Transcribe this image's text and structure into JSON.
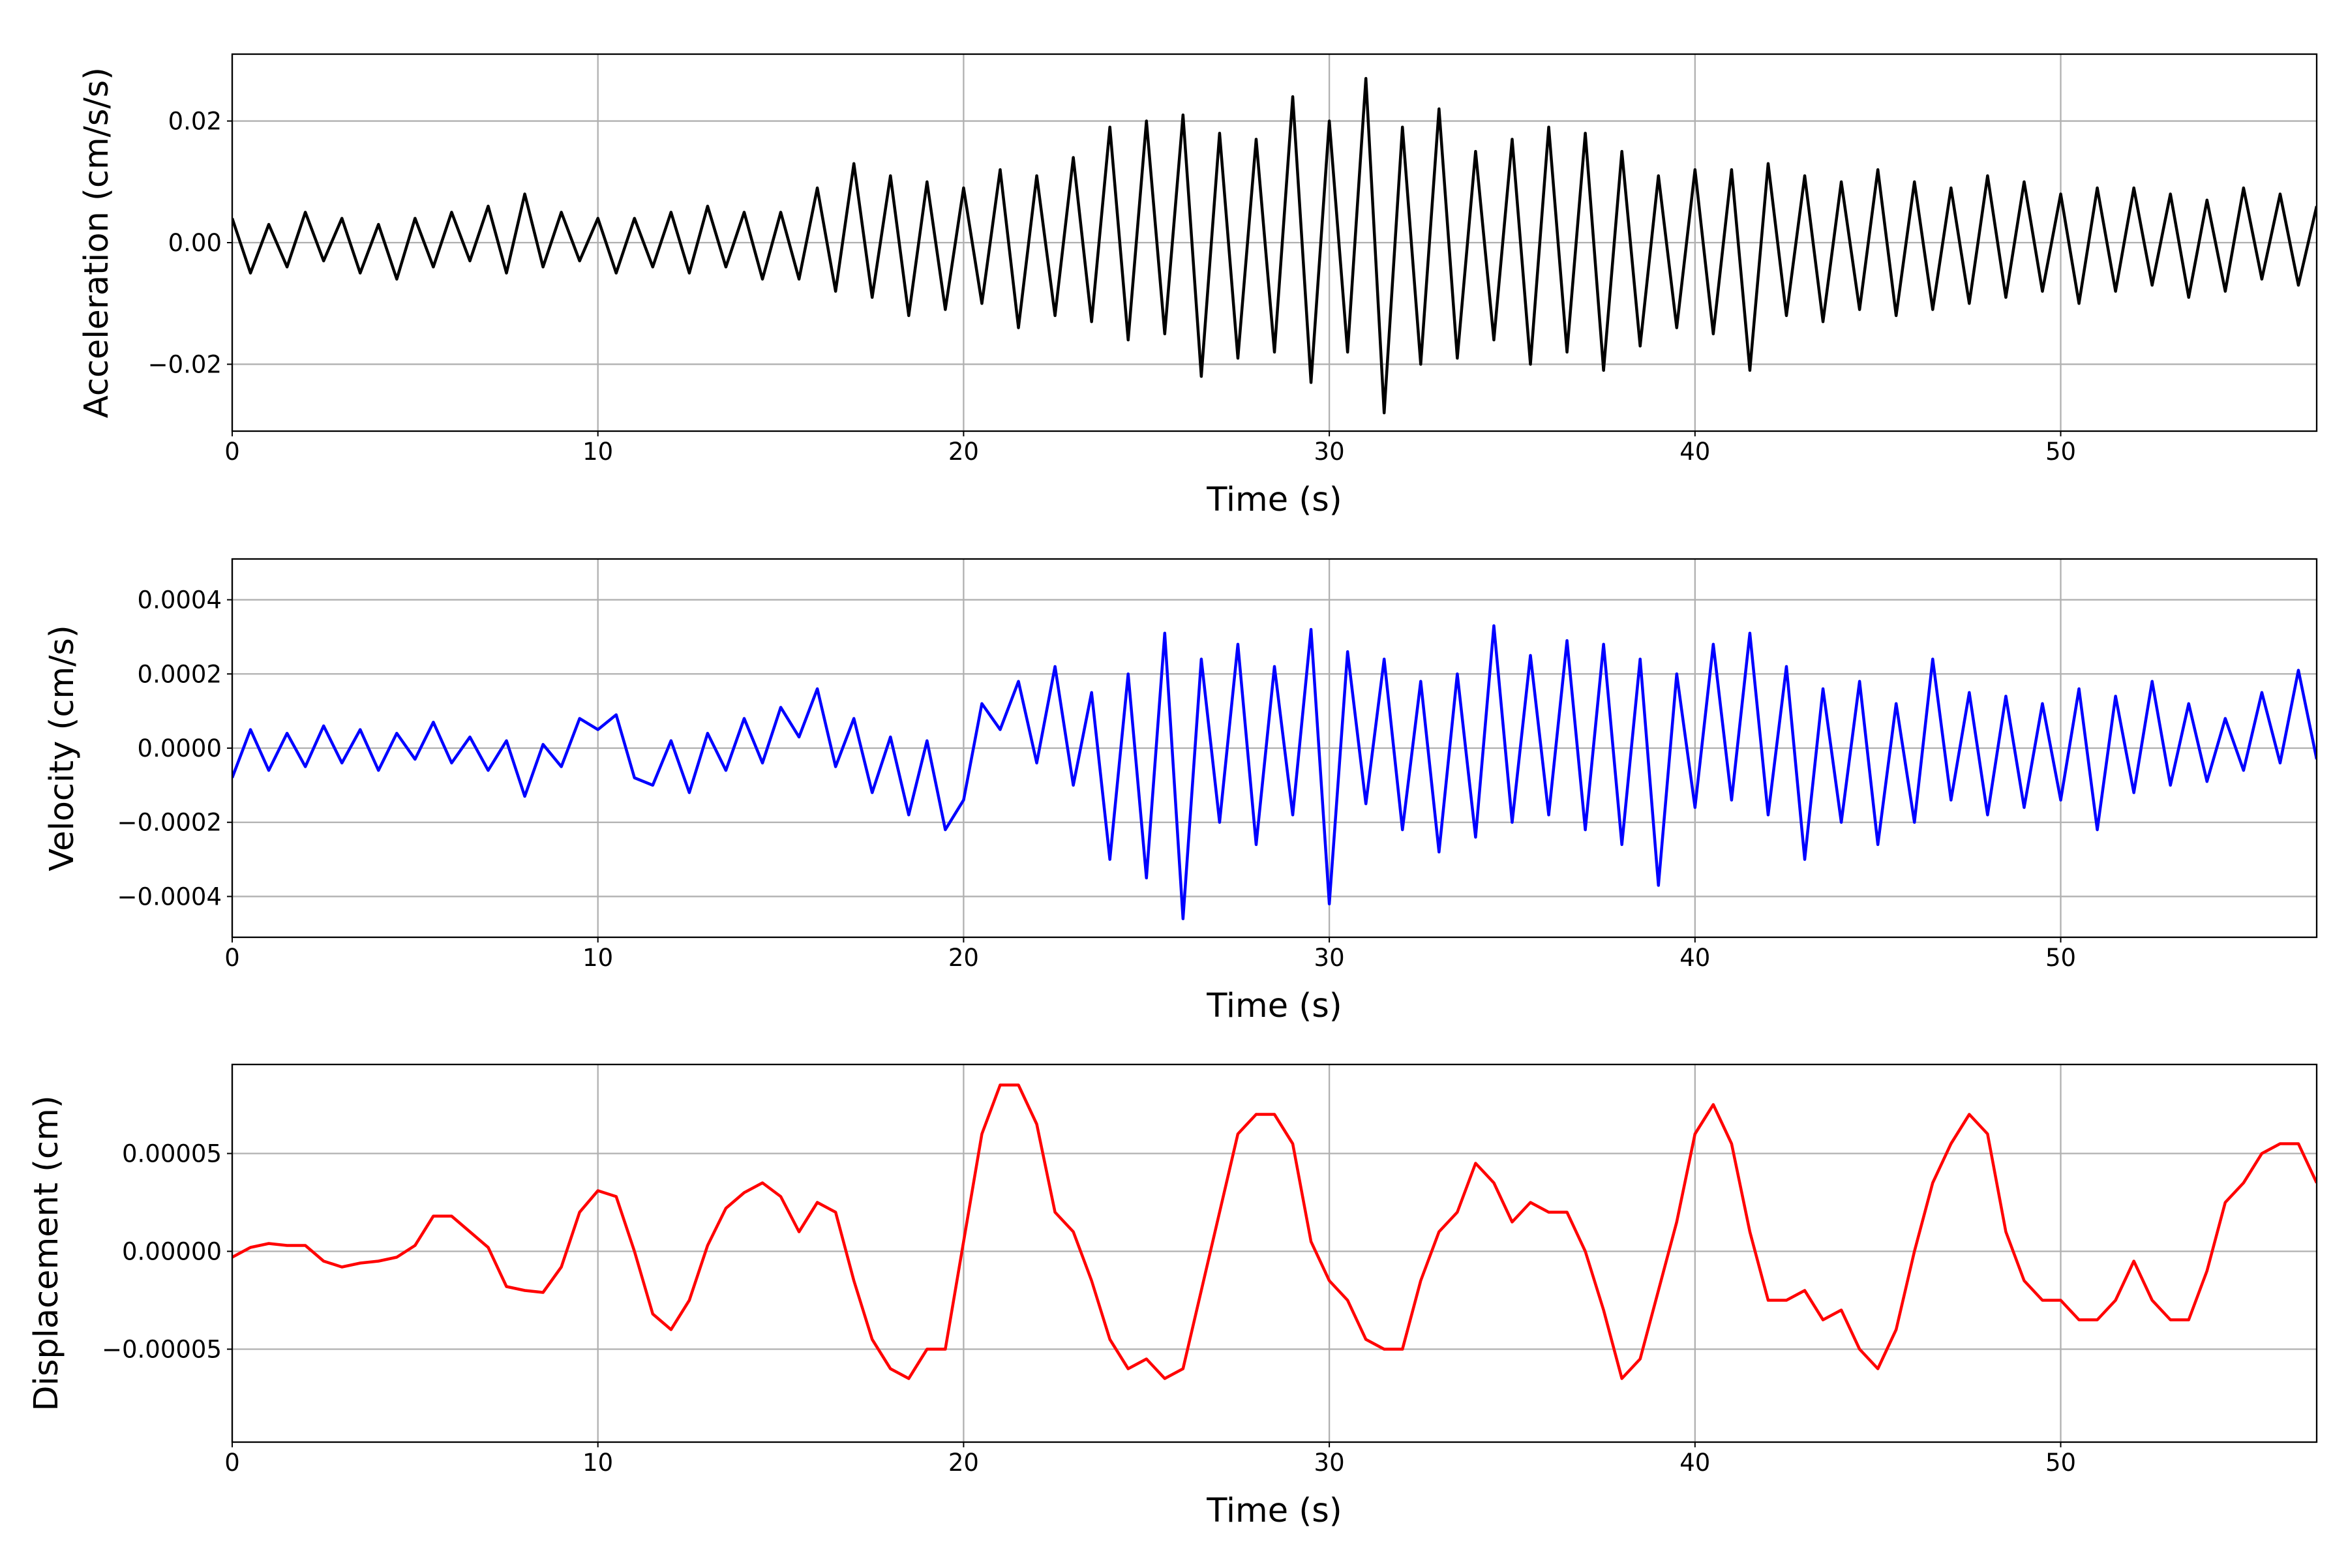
{
  "chart_data": [
    {
      "type": "line",
      "xlabel": "Time (s)",
      "ylabel": "Acceleration (cm/s/s)",
      "color": "#000000",
      "grid": true,
      "xlim": [
        0,
        57
      ],
      "ylim": [
        -0.031,
        0.031
      ],
      "xticks": [
        0,
        10,
        20,
        30,
        40,
        50
      ],
      "yticks": [
        {
          "value": -0.02,
          "label": "−0.02"
        },
        {
          "value": 0,
          "label": "0.00"
        },
        {
          "value": 0.02,
          "label": "0.02"
        }
      ],
      "x": [
        0,
        0.5,
        1,
        1.5,
        2,
        2.5,
        3,
        3.5,
        4,
        4.5,
        5,
        5.5,
        6,
        6.5,
        7,
        7.5,
        8,
        8.5,
        9,
        9.5,
        10,
        10.5,
        11,
        11.5,
        12,
        12.5,
        13,
        13.5,
        14,
        14.5,
        15,
        15.5,
        16,
        16.5,
        17,
        17.5,
        18,
        18.5,
        19,
        19.5,
        20,
        20.5,
        21,
        21.5,
        22,
        22.5,
        23,
        23.5,
        24,
        24.5,
        25,
        25.5,
        26,
        26.5,
        27,
        27.5,
        28,
        28.5,
        29,
        29.5,
        30,
        30.5,
        31,
        31.5,
        32,
        32.5,
        33,
        33.5,
        34,
        34.5,
        35,
        35.5,
        36,
        36.5,
        37,
        37.5,
        38,
        38.5,
        39,
        39.5,
        40,
        40.5,
        41,
        41.5,
        42,
        42.5,
        43,
        43.5,
        44,
        44.5,
        45,
        45.5,
        46,
        46.5,
        47,
        47.5,
        48,
        48.5,
        49,
        49.5,
        50,
        50.5,
        51,
        51.5,
        52,
        52.5,
        53,
        53.5,
        54,
        54.5,
        55,
        55.5,
        56,
        56.5,
        57
      ],
      "values": [
        0.004,
        -0.005,
        0.003,
        -0.004,
        0.005,
        -0.003,
        0.004,
        -0.005,
        0.003,
        -0.006,
        0.004,
        -0.004,
        0.005,
        -0.003,
        0.006,
        -0.005,
        0.008,
        -0.004,
        0.005,
        -0.003,
        0.004,
        -0.005,
        0.004,
        -0.004,
        0.005,
        -0.005,
        0.006,
        -0.004,
        0.005,
        -0.006,
        0.005,
        -0.006,
        0.009,
        -0.008,
        0.013,
        -0.009,
        0.011,
        -0.012,
        0.01,
        -0.011,
        0.009,
        -0.01,
        0.012,
        -0.014,
        0.011,
        -0.012,
        0.014,
        -0.013,
        0.019,
        -0.016,
        0.02,
        -0.015,
        0.021,
        -0.022,
        0.018,
        -0.019,
        0.017,
        -0.018,
        0.024,
        -0.023,
        0.02,
        -0.018,
        0.027,
        -0.028,
        0.019,
        -0.02,
        0.022,
        -0.019,
        0.015,
        -0.016,
        0.017,
        -0.02,
        0.019,
        -0.018,
        0.018,
        -0.021,
        0.015,
        -0.017,
        0.011,
        -0.014,
        0.012,
        -0.015,
        0.012,
        -0.021,
        0.013,
        -0.012,
        0.011,
        -0.013,
        0.01,
        -0.011,
        0.012,
        -0.012,
        0.01,
        -0.011,
        0.009,
        -0.01,
        0.011,
        -0.009,
        0.01,
        -0.008,
        0.008,
        -0.01,
        0.009,
        -0.008,
        0.009,
        -0.007,
        0.008,
        -0.009,
        0.007,
        -0.008,
        0.009,
        -0.006,
        0.008,
        -0.007,
        0.006
      ]
    },
    {
      "type": "line",
      "xlabel": "Time (s)",
      "ylabel": "Velocity (cm/s)",
      "color": "#0000ff",
      "grid": true,
      "xlim": [
        0,
        57
      ],
      "ylim": [
        -0.00051,
        0.00051
      ],
      "xticks": [
        0,
        10,
        20,
        30,
        40,
        50
      ],
      "yticks": [
        {
          "value": -0.0004,
          "label": "−0.0004"
        },
        {
          "value": -0.0002,
          "label": "−0.0002"
        },
        {
          "value": 0,
          "label": "0.0000"
        },
        {
          "value": 0.0002,
          "label": "0.0002"
        },
        {
          "value": 0.0004,
          "label": "0.0004"
        }
      ],
      "x": [
        0,
        0.5,
        1,
        1.5,
        2,
        2.5,
        3,
        3.5,
        4,
        4.5,
        5,
        5.5,
        6,
        6.5,
        7,
        7.5,
        8,
        8.5,
        9,
        9.5,
        10,
        10.5,
        11,
        11.5,
        12,
        12.5,
        13,
        13.5,
        14,
        14.5,
        15,
        15.5,
        16,
        16.5,
        17,
        17.5,
        18,
        18.5,
        19,
        19.5,
        20,
        20.5,
        21,
        21.5,
        22,
        22.5,
        23,
        23.5,
        24,
        24.5,
        25,
        25.5,
        26,
        26.5,
        27,
        27.5,
        28,
        28.5,
        29,
        29.5,
        30,
        30.5,
        31,
        31.5,
        32,
        32.5,
        33,
        33.5,
        34,
        34.5,
        35,
        35.5,
        36,
        36.5,
        37,
        37.5,
        38,
        38.5,
        39,
        39.5,
        40,
        40.5,
        41,
        41.5,
        42,
        42.5,
        43,
        43.5,
        44,
        44.5,
        45,
        45.5,
        46,
        46.5,
        47,
        47.5,
        48,
        48.5,
        49,
        49.5,
        50,
        50.5,
        51,
        51.5,
        52,
        52.5,
        53,
        53.5,
        54,
        54.5,
        55,
        55.5,
        56,
        56.5,
        57
      ],
      "values": [
        -8e-05,
        5e-05,
        -6e-05,
        4e-05,
        -5e-05,
        6e-05,
        -4e-05,
        5e-05,
        -6e-05,
        4e-05,
        -3e-05,
        7e-05,
        -4e-05,
        3e-05,
        -6e-05,
        2e-05,
        -0.00013,
        1e-05,
        -5e-05,
        8e-05,
        5e-05,
        9e-05,
        -8e-05,
        -0.0001,
        2e-05,
        -0.00012,
        4e-05,
        -6e-05,
        8e-05,
        -4e-05,
        0.00011,
        3e-05,
        0.00016,
        -5e-05,
        8e-05,
        -0.00012,
        3e-05,
        -0.00018,
        2e-05,
        -0.00022,
        -0.00014,
        0.00012,
        5e-05,
        0.00018,
        -4e-05,
        0.00022,
        -0.0001,
        0.00015,
        -0.0003,
        0.0002,
        -0.00035,
        0.00031,
        -0.00046,
        0.00024,
        -0.0002,
        0.00028,
        -0.00026,
        0.00022,
        -0.00018,
        0.00032,
        -0.00042,
        0.00026,
        -0.00015,
        0.00024,
        -0.00022,
        0.00018,
        -0.00028,
        0.0002,
        -0.00024,
        0.00033,
        -0.0002,
        0.00025,
        -0.00018,
        0.00029,
        -0.00022,
        0.00028,
        -0.00026,
        0.00024,
        -0.00037,
        0.0002,
        -0.00016,
        0.00028,
        -0.00014,
        0.00031,
        -0.00018,
        0.00022,
        -0.0003,
        0.00016,
        -0.0002,
        0.00018,
        -0.00026,
        0.00012,
        -0.0002,
        0.00024,
        -0.00014,
        0.00015,
        -0.00018,
        0.00014,
        -0.00016,
        0.00012,
        -0.00014,
        0.00016,
        -0.00022,
        0.00014,
        -0.00012,
        0.00018,
        -0.0001,
        0.00012,
        -9e-05,
        8e-05,
        -6e-05,
        0.00015,
        -4e-05,
        0.00021,
        -3e-05
      ]
    },
    {
      "type": "line",
      "xlabel": "Time (s)",
      "ylabel": "Displacement (cm)",
      "color": "#ff0000",
      "grid": true,
      "xlim": [
        0,
        57
      ],
      "ylim": [
        -9.75e-05,
        9.55e-05
      ],
      "xticks": [
        0,
        10,
        20,
        30,
        40,
        50
      ],
      "yticks": [
        {
          "value": -5e-05,
          "label": "−0.00005"
        },
        {
          "value": 0,
          "label": "0.00000"
        },
        {
          "value": 5e-05,
          "label": "0.00005"
        }
      ],
      "x": [
        0,
        0.5,
        1,
        1.5,
        2,
        2.5,
        3,
        3.5,
        4,
        4.5,
        5,
        5.5,
        6,
        6.5,
        7,
        7.5,
        8,
        8.5,
        9,
        9.5,
        10,
        10.5,
        11,
        11.5,
        12,
        12.5,
        13,
        13.5,
        14,
        14.5,
        15,
        15.5,
        16,
        16.5,
        17,
        17.5,
        18,
        18.5,
        19,
        19.5,
        20,
        20.5,
        21,
        21.5,
        22,
        22.5,
        23,
        23.5,
        24,
        24.5,
        25,
        25.5,
        26,
        26.5,
        27,
        27.5,
        28,
        28.5,
        29,
        29.5,
        30,
        30.5,
        31,
        31.5,
        32,
        32.5,
        33,
        33.5,
        34,
        34.5,
        35,
        35.5,
        36,
        36.5,
        37,
        37.5,
        38,
        38.5,
        39,
        39.5,
        40,
        40.5,
        41,
        41.5,
        42,
        42.5,
        43,
        43.5,
        44,
        44.5,
        45,
        45.5,
        46,
        46.5,
        47,
        47.5,
        48,
        48.5,
        49,
        49.5,
        50,
        50.5,
        51,
        51.5,
        52,
        52.5,
        53,
        53.5,
        54,
        54.5,
        55,
        55.5,
        56,
        56.5,
        57
      ],
      "values": [
        -3e-06,
        2e-06,
        4e-06,
        3e-06,
        3e-06,
        -5e-06,
        -8e-06,
        -6e-06,
        -5e-06,
        -3e-06,
        3e-06,
        1.8e-05,
        1.8e-05,
        1e-05,
        2e-06,
        -1.8e-05,
        -2e-05,
        -2.1e-05,
        -8e-06,
        2e-05,
        3.1e-05,
        2.8e-05,
        0,
        -3.2e-05,
        -4e-05,
        -2.5e-05,
        3e-06,
        2.2e-05,
        3e-05,
        3.5e-05,
        2.8e-05,
        1e-05,
        2.5e-05,
        2e-05,
        -1.5e-05,
        -4.5e-05,
        -6e-05,
        -6.5e-05,
        -5e-05,
        -5e-05,
        5e-06,
        6e-05,
        8.5e-05,
        8.5e-05,
        6.5e-05,
        2e-05,
        1e-05,
        -1.5e-05,
        -4.5e-05,
        -6e-05,
        -5.5e-05,
        -6.5e-05,
        -6e-05,
        -2e-05,
        2e-05,
        6e-05,
        7e-05,
        7e-05,
        5.5e-05,
        5e-06,
        -1.5e-05,
        -2.5e-05,
        -4.5e-05,
        -5e-05,
        -5e-05,
        -1.5e-05,
        1e-05,
        2e-05,
        4.5e-05,
        3.5e-05,
        1.5e-05,
        2.5e-05,
        2e-05,
        2e-05,
        0,
        -3e-05,
        -6.5e-05,
        -5.5e-05,
        -2e-05,
        1.5e-05,
        6e-05,
        7.5e-05,
        5.5e-05,
        1e-05,
        -2.5e-05,
        -2.5e-05,
        -2e-05,
        -3.5e-05,
        -3e-05,
        -5e-05,
        -6e-05,
        -4e-05,
        0,
        3.5e-05,
        5.5e-05,
        7e-05,
        6e-05,
        1e-05,
        -1.5e-05,
        -2.5e-05,
        -2.5e-05,
        -3.5e-05,
        -3.5e-05,
        -2.5e-05,
        -5e-06,
        -2.5e-05,
        -3.5e-05,
        -3.5e-05,
        -1e-05,
        2.5e-05,
        3.5e-05,
        5e-05,
        5.5e-05,
        5.5e-05,
        3.5e-05
      ]
    }
  ]
}
